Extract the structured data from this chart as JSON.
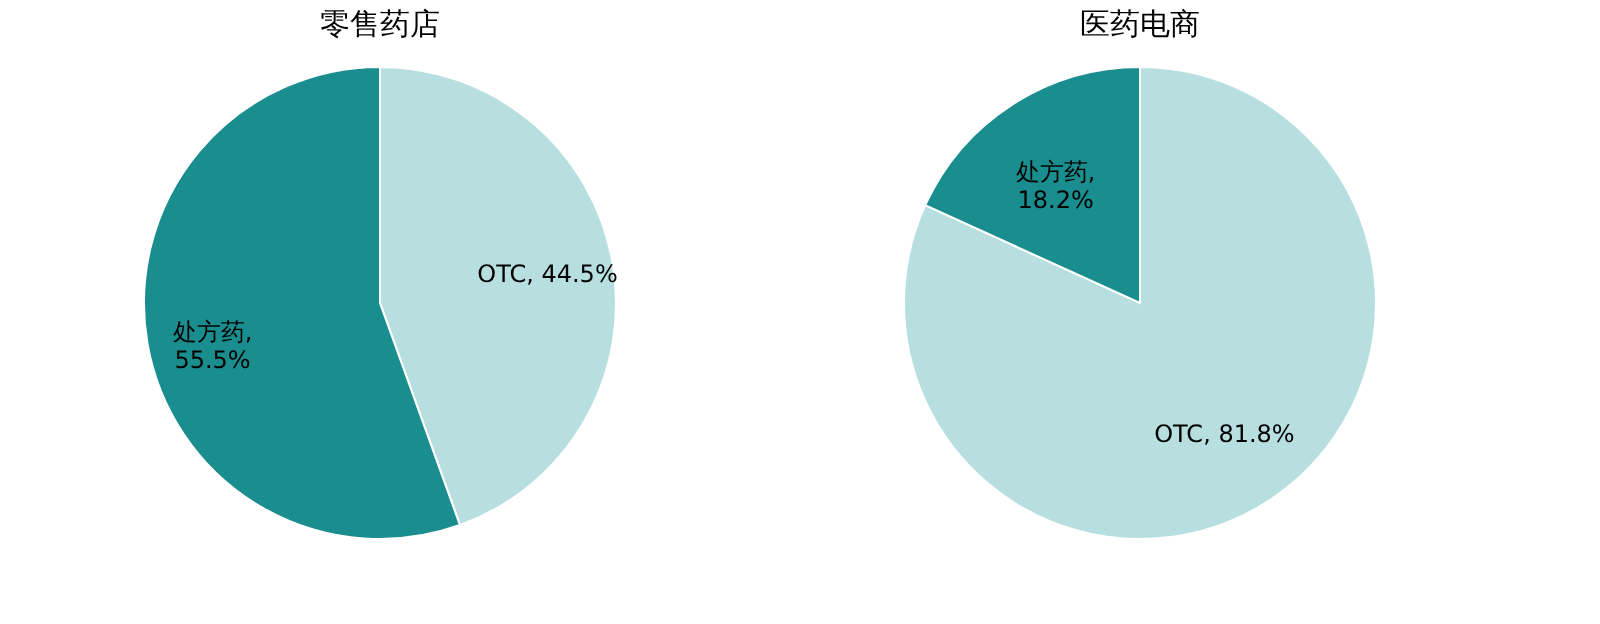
{
  "chart_data": [
    {
      "type": "pie",
      "title": "零售药店",
      "categories": [
        "OTC",
        "处方药"
      ],
      "values": [
        44.5,
        55.5
      ],
      "colors": [
        "#b7dfe0",
        "#1a8d8f"
      ],
      "value_labels": [
        ", 44.5%",
        ",\n55.5%"
      ]
    },
    {
      "type": "pie",
      "title": "医药电商",
      "categories": [
        "OTC",
        "处方药"
      ],
      "values": [
        81.8,
        18.2
      ],
      "colors": [
        "#b7dfe0",
        "#1a8d8f"
      ],
      "value_labels": [
        ", 81.8%",
        ",\n18.2%"
      ]
    }
  ]
}
